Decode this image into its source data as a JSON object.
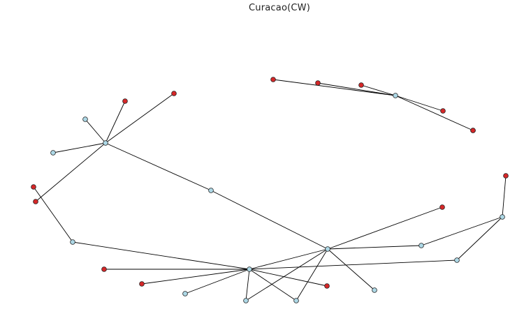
{
  "title": "Curacao(CW)",
  "colors": {
    "light": "#add8e6",
    "red": "#d62728",
    "edge": "#000000",
    "stroke": "#222222"
  },
  "nodes": [
    {
      "id": "h1",
      "kind": "light"
    },
    {
      "id": "h2",
      "kind": "light"
    },
    {
      "id": "h3",
      "kind": "light"
    },
    {
      "id": "h4",
      "kind": "light"
    },
    {
      "id": "h5",
      "kind": "light"
    },
    {
      "id": "l1",
      "kind": "light"
    },
    {
      "id": "l2",
      "kind": "light"
    },
    {
      "id": "l3",
      "kind": "light"
    },
    {
      "id": "l4",
      "kind": "light"
    },
    {
      "id": "l5",
      "kind": "light"
    },
    {
      "id": "l6",
      "kind": "light"
    },
    {
      "id": "l7",
      "kind": "light"
    },
    {
      "id": "l8",
      "kind": "light"
    },
    {
      "id": "l9",
      "kind": "light"
    },
    {
      "id": "l10",
      "kind": "light"
    },
    {
      "id": "l11",
      "kind": "light"
    },
    {
      "id": "r1",
      "kind": "red"
    },
    {
      "id": "r2",
      "kind": "red"
    },
    {
      "id": "r3",
      "kind": "red"
    },
    {
      "id": "r4",
      "kind": "red"
    },
    {
      "id": "r5",
      "kind": "red"
    },
    {
      "id": "r6",
      "kind": "red"
    },
    {
      "id": "r7",
      "kind": "red"
    },
    {
      "id": "r8",
      "kind": "red"
    },
    {
      "id": "r9",
      "kind": "red"
    },
    {
      "id": "r10",
      "kind": "red"
    },
    {
      "id": "r11",
      "kind": "red"
    },
    {
      "id": "r12",
      "kind": "red"
    },
    {
      "id": "r13",
      "kind": "red"
    },
    {
      "id": "r14",
      "kind": "red"
    }
  ],
  "edges": [
    [
      "h1",
      "r1"
    ],
    [
      "h1",
      "r2"
    ],
    [
      "h1",
      "l1"
    ],
    [
      "h1",
      "l2"
    ],
    [
      "h1",
      "r3"
    ],
    [
      "h1",
      "l3"
    ],
    [
      "h5",
      "r4"
    ],
    [
      "h5",
      "r5"
    ],
    [
      "h5",
      "r6"
    ],
    [
      "h5",
      "r7"
    ],
    [
      "h2",
      "r8"
    ],
    [
      "h2",
      "l4"
    ],
    [
      "h2",
      "h3"
    ],
    [
      "h2",
      "r9"
    ],
    [
      "h2",
      "r10"
    ],
    [
      "h2",
      "l5"
    ],
    [
      "h2",
      "l6"
    ],
    [
      "h2",
      "l7"
    ],
    [
      "h2",
      "l8"
    ],
    [
      "h3",
      "l3"
    ],
    [
      "h3",
      "r11"
    ],
    [
      "h3",
      "l6"
    ],
    [
      "h3",
      "l5"
    ],
    [
      "h3",
      "l9"
    ],
    [
      "h3",
      "l10"
    ],
    [
      "l4",
      "r12"
    ],
    [
      "l11",
      "r13"
    ],
    [
      "l11",
      "l9"
    ],
    [
      "l11",
      "l8"
    ]
  ]
}
